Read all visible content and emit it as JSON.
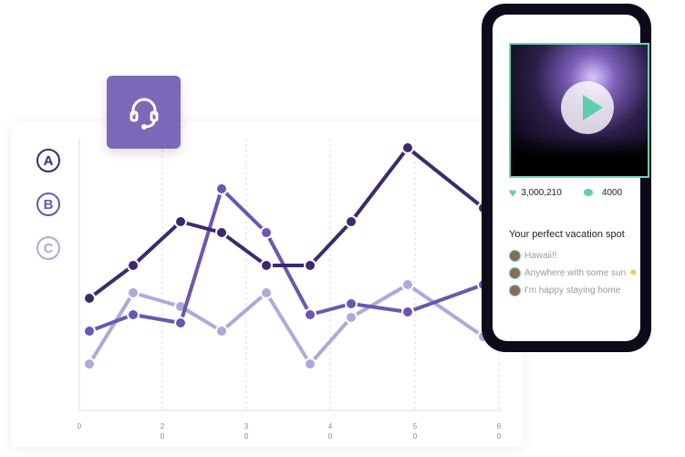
{
  "legend": [
    {
      "label": "A",
      "color": "#3b2a6e"
    },
    {
      "label": "B",
      "color": "#6a57b0"
    },
    {
      "label": "C",
      "color": "#b0a8d8"
    }
  ],
  "icon": "headset-icon",
  "chart_data": {
    "type": "line",
    "x_ticks": [
      "0",
      "20",
      "30",
      "40",
      "50",
      "60"
    ],
    "grid": "vertical dashed",
    "ylim": [
      0,
      100
    ],
    "x": [
      0,
      1,
      2,
      3,
      4,
      5,
      6,
      7,
      8
    ],
    "series": [
      {
        "name": "A",
        "color": "#3b2a6e",
        "values": [
          41,
          53,
          69,
          65,
          53,
          53,
          69,
          96,
          74
        ]
      },
      {
        "name": "B",
        "color": "#6a57b0",
        "values": [
          29,
          35,
          32,
          81,
          65,
          35,
          39,
          36,
          46
        ]
      },
      {
        "name": "C",
        "color": "#b0a8d8",
        "values": [
          17,
          43,
          38,
          29,
          43,
          17,
          34,
          46,
          27
        ]
      }
    ]
  },
  "phone": {
    "likes": "3,000,210",
    "comments": "4000",
    "poll_title": "Your perfect vacation spot",
    "options": [
      "Hawaii!!",
      "Anywhere with some sun",
      "I'm happy staying home"
    ],
    "accent": "#5ecfae"
  }
}
